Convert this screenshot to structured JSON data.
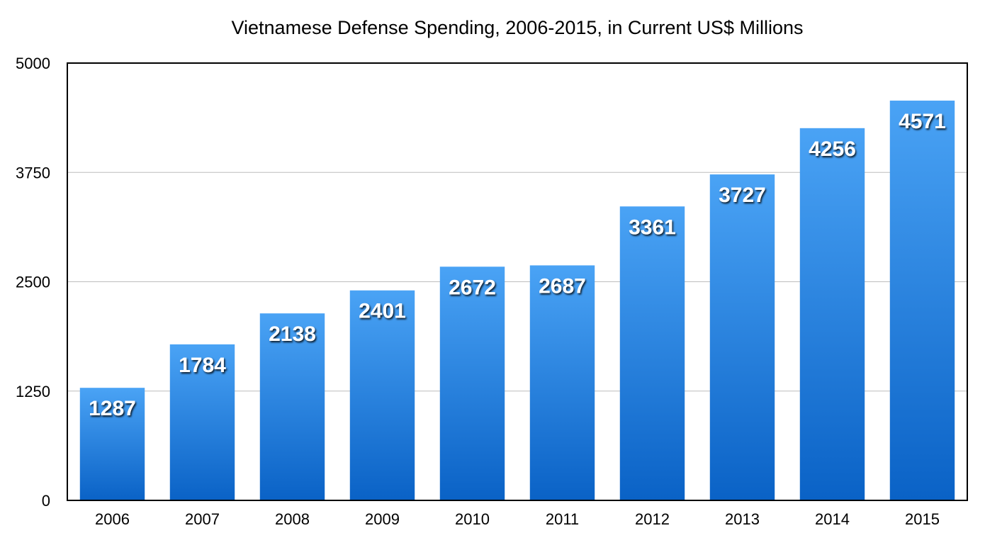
{
  "chart_data": {
    "type": "bar",
    "title": "Vietnamese Defense Spending, 2006-2015, in Current US$ Millions",
    "xlabel": "",
    "ylabel": "",
    "categories": [
      "2006",
      "2007",
      "2008",
      "2009",
      "2010",
      "2011",
      "2012",
      "2013",
      "2014",
      "2015"
    ],
    "values": [
      1287,
      1784,
      2138,
      2401,
      2672,
      2687,
      3361,
      3727,
      4256,
      4571
    ],
    "ylim": [
      0,
      5000
    ],
    "yticks": [
      0,
      1250,
      2500,
      3750,
      5000
    ],
    "grid": true,
    "data_labels": true,
    "colors": {
      "bar_top": "#4aa3f5",
      "bar_bottom": "#0a62c6",
      "grid": "#bdbdbd",
      "frame": "#000000"
    }
  }
}
